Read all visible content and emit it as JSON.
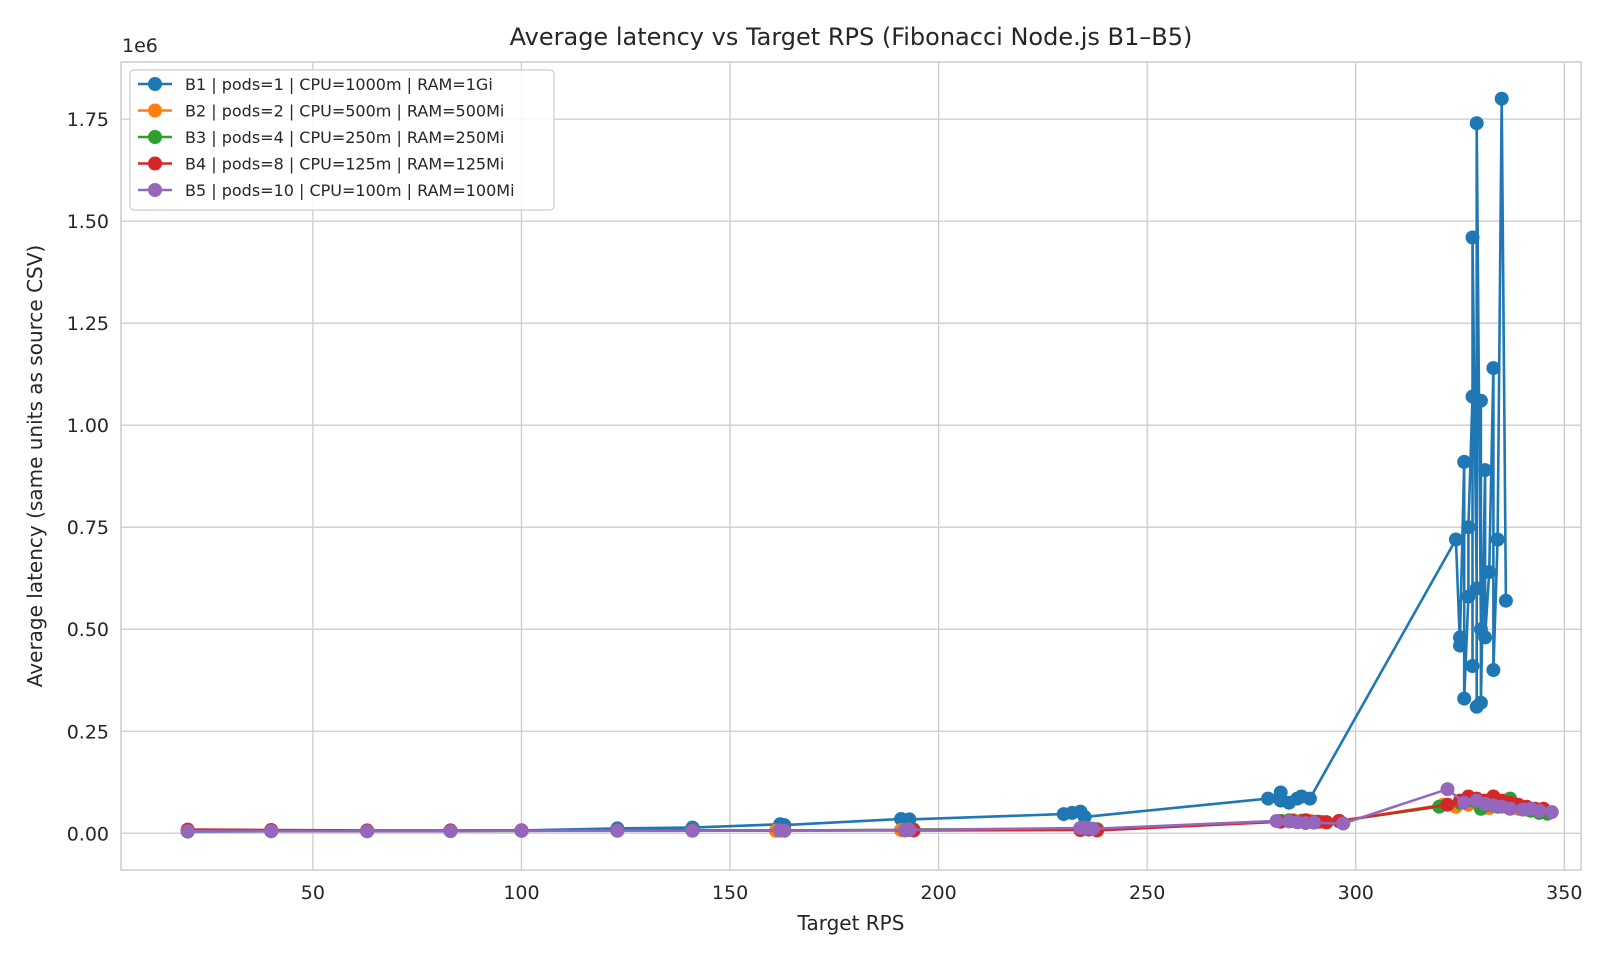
{
  "chart_data": {
    "type": "line",
    "title": "Average latency vs Target RPS (Fibonacci Node.js B1–B5)",
    "xlabel": "Target RPS",
    "ylabel": "Average latency (same units as source CSV)",
    "y_offset_label": "1e6",
    "xlim": [
      4,
      354
    ],
    "ylim": [
      -0.09,
      1.89
    ],
    "x_ticks": [
      50,
      100,
      150,
      200,
      250,
      300,
      350
    ],
    "x_tick_labels": [
      "50",
      "100",
      "150",
      "200",
      "250",
      "300",
      "350"
    ],
    "y_ticks": [
      0,
      0.25,
      0.5,
      0.75,
      1.0,
      1.25,
      1.5,
      1.75
    ],
    "y_tick_labels": [
      "0.00",
      "0.25",
      "0.50",
      "0.75",
      "1.00",
      "1.25",
      "1.50",
      "1.75"
    ],
    "grid": true,
    "legend_position": "upper-left",
    "series": [
      {
        "name": "B1 | pods=1 | CPU=1000m | RAM=1Gi",
        "color": "#1f77b4",
        "x": [
          20,
          40,
          63,
          83,
          100,
          123,
          141,
          162,
          163,
          191,
          193,
          230,
          232,
          234,
          235,
          279,
          282,
          282,
          284,
          286,
          287,
          289,
          324,
          325,
          325,
          326,
          326,
          327,
          327,
          328,
          328,
          328,
          329,
          329,
          329,
          330,
          330,
          330,
          331,
          331,
          332,
          333,
          333,
          334,
          335,
          336
        ],
        "y": [
          0.004,
          0.005,
          0.005,
          0.006,
          0.007,
          0.012,
          0.014,
          0.022,
          0.02,
          0.035,
          0.034,
          0.047,
          0.05,
          0.053,
          0.04,
          0.085,
          0.1,
          0.08,
          0.075,
          0.085,
          0.09,
          0.085,
          0.72,
          0.46,
          0.48,
          0.91,
          0.33,
          0.58,
          0.75,
          1.07,
          0.41,
          1.46,
          0.6,
          0.31,
          1.74,
          0.5,
          1.06,
          0.32,
          0.89,
          0.48,
          0.64,
          1.14,
          0.4,
          0.72,
          1.8,
          0.57
        ]
      },
      {
        "name": "B2 | pods=2 | CPU=500m | RAM=500Mi",
        "color": "#ff7f0e",
        "x": [
          20,
          40,
          63,
          83,
          100,
          123,
          141,
          161,
          162,
          191,
          193,
          234,
          236,
          238,
          282,
          285,
          287,
          289,
          292,
          296,
          321,
          324,
          327,
          330,
          332,
          334,
          336,
          339,
          341,
          344,
          346
        ],
        "y": [
          0.006,
          0.006,
          0.006,
          0.006,
          0.006,
          0.007,
          0.007,
          0.006,
          0.007,
          0.008,
          0.009,
          0.011,
          0.012,
          0.01,
          0.03,
          0.032,
          0.031,
          0.03,
          0.028,
          0.03,
          0.07,
          0.065,
          0.07,
          0.068,
          0.062,
          0.07,
          0.065,
          0.06,
          0.058,
          0.055,
          0.05
        ]
      },
      {
        "name": "B3 | pods=4 | CPU=250m | RAM=250Mi",
        "color": "#2ca02c",
        "x": [
          20,
          40,
          63,
          83,
          100,
          123,
          141,
          162,
          163,
          192,
          194,
          234,
          236,
          238,
          282,
          284,
          287,
          290,
          293,
          296,
          320,
          325,
          328,
          330,
          332,
          334,
          337,
          340,
          342,
          344,
          346
        ],
        "y": [
          0.006,
          0.006,
          0.006,
          0.006,
          0.006,
          0.007,
          0.007,
          0.007,
          0.007,
          0.008,
          0.009,
          0.01,
          0.011,
          0.01,
          0.03,
          0.032,
          0.03,
          0.028,
          0.027,
          0.03,
          0.065,
          0.075,
          0.08,
          0.06,
          0.07,
          0.065,
          0.085,
          0.06,
          0.055,
          0.05,
          0.048
        ]
      },
      {
        "name": "B4 | pods=8 | CPU=125m | RAM=125Mi",
        "color": "#d62728",
        "x": [
          20,
          40,
          63,
          83,
          100,
          123,
          141,
          162,
          163,
          192,
          194,
          234,
          236,
          238,
          282,
          285,
          288,
          291,
          293,
          296,
          322,
          325,
          327,
          329,
          331,
          333,
          335,
          337,
          339,
          341,
          343,
          345
        ],
        "y": [
          0.009,
          0.008,
          0.007,
          0.007,
          0.007,
          0.007,
          0.007,
          0.007,
          0.007,
          0.007,
          0.007,
          0.008,
          0.009,
          0.007,
          0.028,
          0.03,
          0.032,
          0.028,
          0.027,
          0.03,
          0.07,
          0.08,
          0.09,
          0.085,
          0.08,
          0.09,
          0.08,
          0.075,
          0.07,
          0.065,
          0.06,
          0.06
        ]
      },
      {
        "name": "B5 | pods=10 | CPU=100m | RAM=100Mi",
        "color": "#9467bd",
        "x": [
          20,
          40,
          63,
          83,
          100,
          123,
          141,
          162,
          163,
          192,
          193,
          234,
          235,
          236,
          237,
          281,
          284,
          286,
          288,
          290,
          297,
          322,
          326,
          329,
          331,
          333,
          335,
          337,
          340,
          342,
          344,
          347
        ],
        "y": [
          0.005,
          0.005,
          0.005,
          0.005,
          0.006,
          0.006,
          0.006,
          0.007,
          0.006,
          0.008,
          0.008,
          0.013,
          0.014,
          0.012,
          0.011,
          0.03,
          0.029,
          0.027,
          0.025,
          0.026,
          0.024,
          0.108,
          0.075,
          0.08,
          0.072,
          0.068,
          0.065,
          0.06,
          0.058,
          0.06,
          0.055,
          0.052
        ]
      }
    ]
  }
}
